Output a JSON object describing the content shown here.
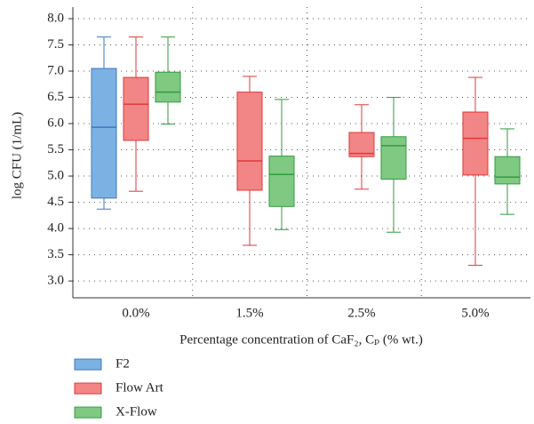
{
  "chart_data": {
    "type": "box",
    "x_label": "Percentage concentration of CaF₂, Cₚ (% wt.)",
    "y_label": "log CFU (1/mL)",
    "categories": [
      "0.0%",
      "1.5%",
      "2.5%",
      "5.0%"
    ],
    "ylim": [
      2.68,
      8.22
    ],
    "yticks": [
      {
        "value": 3,
        "label": "3.0"
      },
      3.5,
      {
        "value": 4,
        "label": "4.0"
      },
      4.5,
      {
        "value": 5,
        "label": "5.0"
      },
      5.5,
      {
        "value": 6,
        "label": "6.0"
      },
      6.5,
      {
        "value": 7,
        "label": "7.0"
      },
      7.5,
      {
        "value": 8,
        "label": "8.0"
      }
    ],
    "grid": true,
    "legend": "bottom-left",
    "series": [
      {
        "name": "F2",
        "color": "#7cb2e3",
        "edgecolor": "#3a78c2",
        "min": [
          4.37,
          null,
          null,
          null
        ],
        "q1": [
          4.58,
          null,
          null,
          null
        ],
        "median": [
          5.93,
          null,
          null,
          null
        ],
        "q3": [
          7.05,
          null,
          null,
          null
        ],
        "max": [
          7.65,
          null,
          null,
          null
        ]
      },
      {
        "name": "Flow Art",
        "color": "#f28585",
        "edgecolor": "#e0383a",
        "min": [
          4.71,
          3.68,
          4.75,
          3.3
        ],
        "q1": [
          5.68,
          4.73,
          5.37,
          5.02
        ],
        "median": [
          6.37,
          5.29,
          5.43,
          5.72
        ],
        "q3": [
          6.88,
          6.6,
          5.83,
          6.22
        ],
        "max": [
          7.65,
          6.9,
          6.36,
          6.88
        ]
      },
      {
        "name": "X-Flow",
        "color": "#80c982",
        "edgecolor": "#2f9c3f",
        "min": [
          5.99,
          3.98,
          3.93,
          4.27
        ],
        "q1": [
          6.41,
          4.42,
          4.94,
          4.85
        ],
        "median": [
          6.6,
          5.03,
          5.58,
          4.98
        ],
        "q3": [
          6.98,
          5.38,
          5.75,
          5.37
        ],
        "max": [
          7.65,
          6.46,
          6.5,
          5.9
        ]
      }
    ]
  }
}
